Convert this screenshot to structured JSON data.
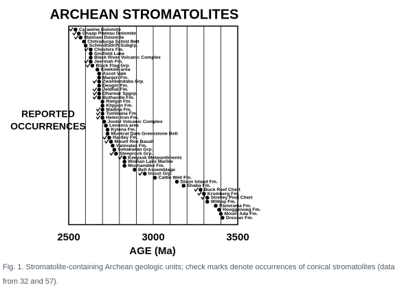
{
  "chart_data": {
    "type": "dot",
    "title": "ARCHEAN STROMATOLITES",
    "ylabel": [
      "REPORTED",
      "OCCURRENCES"
    ],
    "xlabel": "AGE (Ma)",
    "xlim": [
      2500,
      3500
    ],
    "xticks": [
      2500,
      3000,
      3500
    ],
    "xminor": [
      2600,
      2700,
      2800,
      2900,
      3100,
      3200,
      3300,
      3400
    ],
    "grid": true,
    "color": "#000000",
    "categories": [
      "Carawine Dolomite",
      "Ghaap Plateau Dolomite",
      "Malmani Dolomite",
      "Chitradurga Schist Belt",
      "Schmidtsdrift Subgrp.",
      "Cheshire Fm.",
      "Snofield Lake",
      "Black River Volcanic Complex",
      "Jeerinah Fm.",
      "Black Flag Grp.",
      "Kwekwe area",
      "Ascot Vale",
      "Manjeri Fm.",
      "Zwankendaba Grp.",
      "Deogiri Fm.",
      "Jeldhal Fm.",
      "Dharwar Spgrp.",
      "Bothaville Fm.",
      "Rietgat Fm.",
      "Klippan Fm.",
      "Madina Fm.",
      "Tumbiana Fm.",
      "Helen Iron-Fm.",
      "Joutel Volcanic Complex",
      "Leonora area",
      "Kylena Fm.",
      "Muskrat Dam Greenstone Belt",
      "Hardey Fm.",
      "Mount Roe Basalt",
      "Vanivalas Fm.",
      "Sebakwian Grp.",
      "Steeprock Grp.",
      "Keeyask Metasediments",
      "Woman Lake Marble",
      "Mushandike Fm.",
      "Bell Assemblage",
      "Insuzi Grp.",
      "Cattle Well Fm.",
      "Dixon Island Fm.",
      "Shaba Fm.",
      "Buck Reef Chert",
      "Kromberg Fm.",
      "Strelley Pool Chert",
      "Witkop Fm.",
      "Panorama Fm.",
      "Hooggenoeg Fm.",
      "Mount Ada Fm.",
      "Dresser Fm."
    ],
    "values": [
      2540,
      2560,
      2570,
      2590,
      2600,
      2630,
      2630,
      2630,
      2630,
      2640,
      2670,
      2680,
      2680,
      2680,
      2680,
      2680,
      2680,
      2680,
      2700,
      2700,
      2700,
      2700,
      2700,
      2710,
      2720,
      2730,
      2730,
      2740,
      2750,
      2760,
      2770,
      2780,
      2830,
      2830,
      2830,
      2890,
      2950,
      3010,
      3140,
      3180,
      3280,
      3300,
      3320,
      3320,
      3370,
      3390,
      3400,
      3410
    ],
    "conical": [
      true,
      true,
      true,
      false,
      false,
      true,
      false,
      false,
      true,
      true,
      false,
      false,
      false,
      true,
      false,
      true,
      true,
      true,
      false,
      false,
      true,
      true,
      true,
      false,
      false,
      false,
      false,
      true,
      true,
      false,
      false,
      true,
      true,
      false,
      false,
      false,
      true,
      false,
      false,
      false,
      true,
      true,
      true,
      false,
      false,
      false,
      false,
      false
    ]
  },
  "caption": "Fig. 1. Stromatolite-containing Archean geologic units; check marks denote occurrences of conical stromatolites (data from 32 and 57)."
}
